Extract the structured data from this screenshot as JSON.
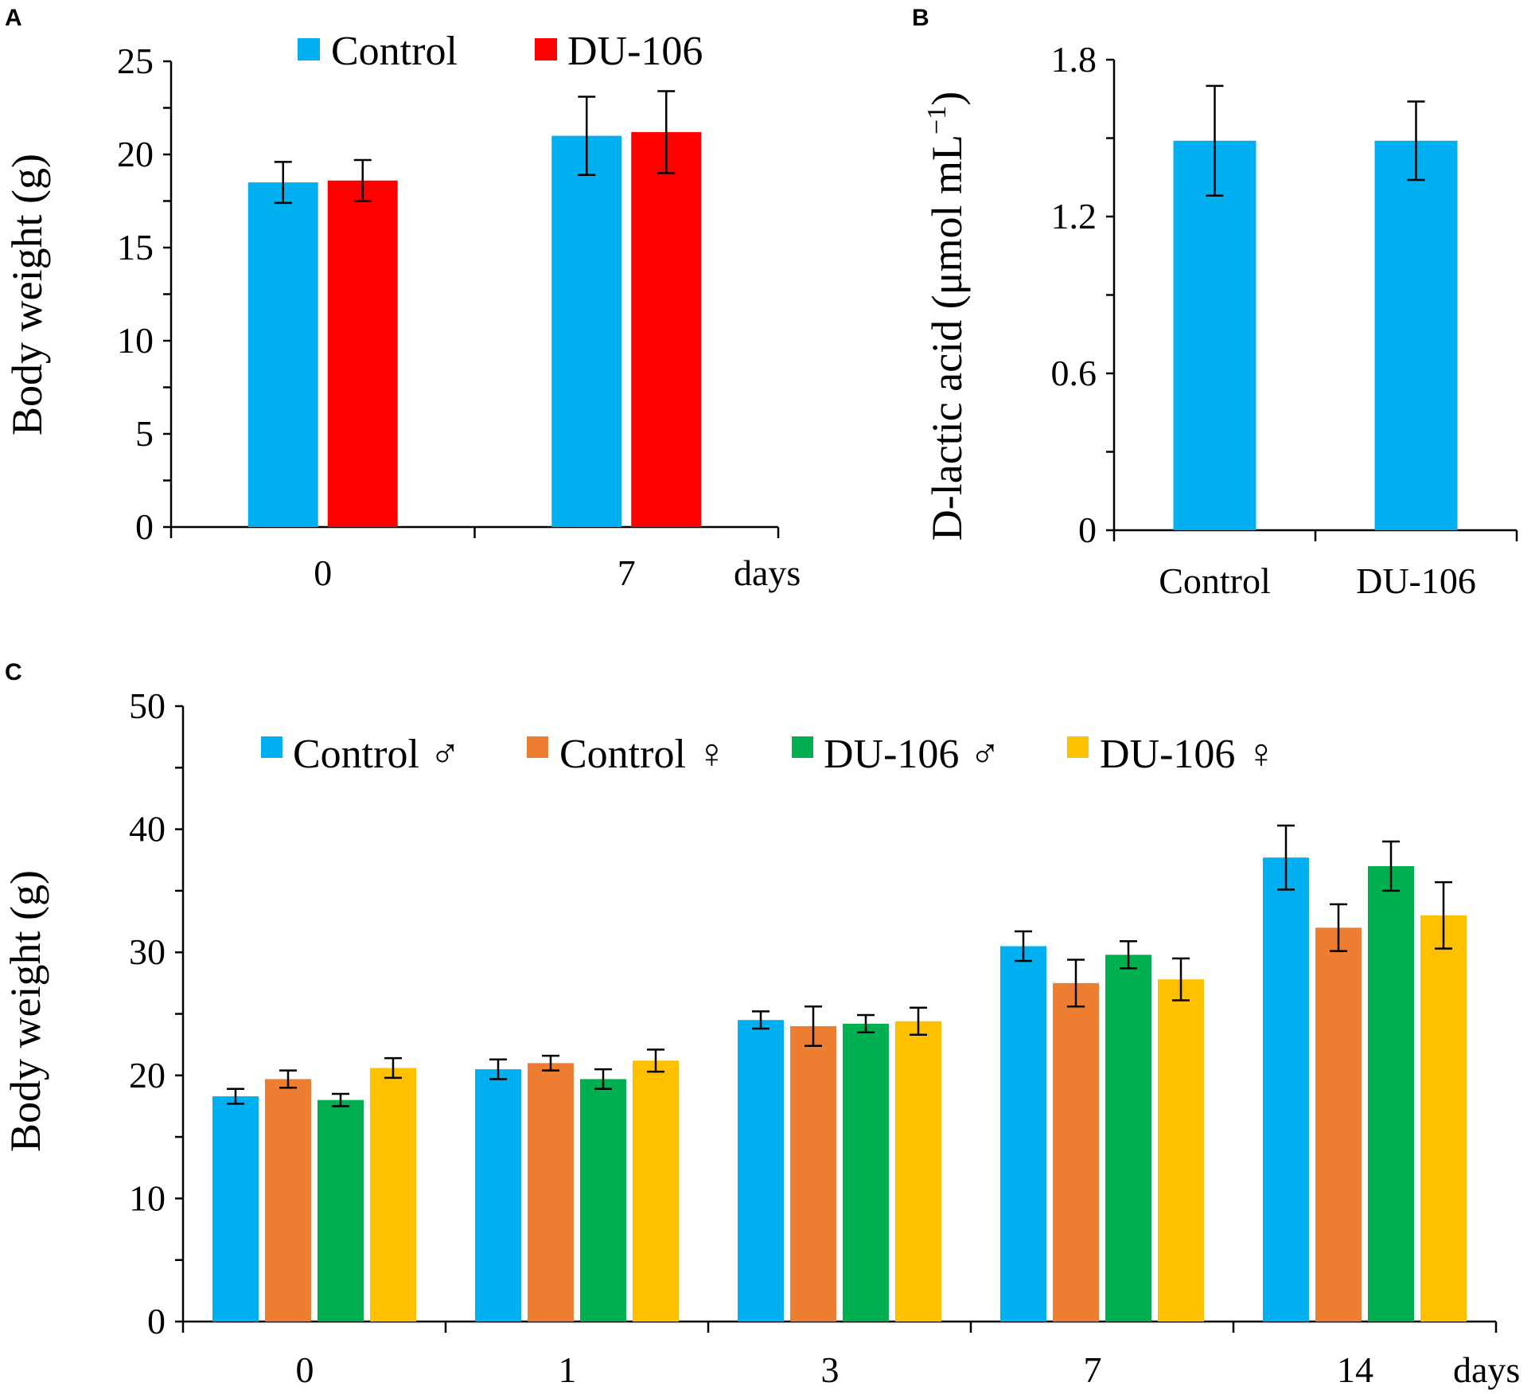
{
  "chart_data": [
    {
      "panel": "A",
      "type": "bar",
      "xlabel": "days",
      "ylabel": "Body weight (g)",
      "ylim": [
        0,
        25
      ],
      "yticks": [
        "0",
        "5",
        "10",
        "15",
        "20",
        "25"
      ],
      "categories": [
        "0",
        "7"
      ],
      "series": [
        {
          "name": "Control",
          "color": "#00B0F0",
          "values": [
            18.5,
            21.0
          ],
          "errors": [
            1.1,
            2.1
          ]
        },
        {
          "name": "DU-106",
          "color": "#FF0000",
          "values": [
            18.6,
            21.2
          ],
          "errors": [
            1.1,
            2.2
          ]
        }
      ],
      "legend": "top"
    },
    {
      "panel": "B",
      "type": "bar",
      "xlabel": "",
      "ylabel": "D-lactic acid (μmol mL",
      "ylabel_superscript": "−1",
      "ylabel_close": ")",
      "ylim": [
        0,
        1.8
      ],
      "yticks": [
        "0",
        "0.6",
        "1.2",
        "1.8"
      ],
      "categories": [
        "Control",
        "DU-106"
      ],
      "series": [
        {
          "name": "D-lactic acid",
          "color": "#00B0F0",
          "values": [
            1.49,
            1.49
          ],
          "errors": [
            0.21,
            0.15
          ]
        }
      ]
    },
    {
      "panel": "C",
      "type": "bar",
      "xlabel": "days",
      "ylabel": "Body weight (g)",
      "ylim": [
        0,
        50
      ],
      "yticks": [
        "0",
        "10",
        "20",
        "30",
        "40",
        "50"
      ],
      "categories": [
        "0",
        "1",
        "3",
        "7",
        "14"
      ],
      "series": [
        {
          "name": "Control ♂",
          "color": "#00B0F0",
          "values": [
            18.3,
            20.5,
            24.5,
            30.5,
            37.7
          ],
          "errors": [
            0.6,
            0.8,
            0.7,
            1.2,
            2.6
          ]
        },
        {
          "name": "Control ♀",
          "color": "#ED7D31",
          "values": [
            19.7,
            21.0,
            24.0,
            27.5,
            32.0
          ],
          "errors": [
            0.7,
            0.6,
            1.6,
            1.9,
            1.9
          ]
        },
        {
          "name": "DU-106 ♂",
          "color": "#00B050",
          "values": [
            18.0,
            19.7,
            24.2,
            29.8,
            37.0
          ],
          "errors": [
            0.5,
            0.8,
            0.7,
            1.1,
            2.0
          ]
        },
        {
          "name": "DU-106 ♀",
          "color": "#FFC000",
          "values": [
            20.6,
            21.2,
            24.4,
            27.8,
            33.0
          ],
          "errors": [
            0.8,
            0.9,
            1.1,
            1.7,
            2.7
          ]
        }
      ],
      "legend": "top"
    }
  ]
}
